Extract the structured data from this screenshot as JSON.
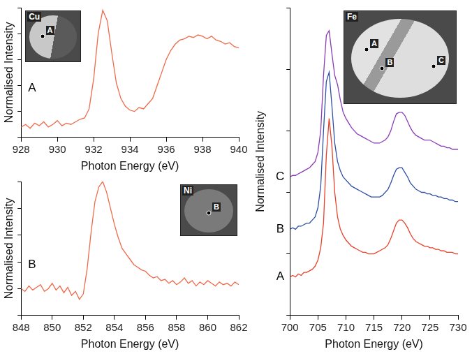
{
  "chart_data": [
    {
      "type": "line",
      "xlabel": "Photon Energy (eV)",
      "ylabel": "Normalised Intensity",
      "x": [
        928,
        928.25,
        928.5,
        928.75,
        929,
        929.25,
        929.5,
        929.75,
        930,
        930.25,
        930.5,
        930.75,
        931,
        931.25,
        931.5,
        931.75,
        932,
        932.25,
        932.5,
        932.75,
        933,
        933.25,
        933.5,
        933.75,
        934,
        934.25,
        934.5,
        934.75,
        935,
        935.25,
        935.5,
        935.75,
        936,
        936.25,
        936.5,
        936.75,
        937,
        937.25,
        937.5,
        937.75,
        938,
        938.25,
        938.5,
        938.75,
        939,
        939.25,
        939.5,
        939.75,
        940
      ],
      "series": [
        {
          "name": "A",
          "color": "#ef6a4a",
          "values": [
            8,
            10,
            7,
            11,
            9,
            12,
            8,
            10,
            13,
            9,
            11,
            10,
            12,
            14,
            15,
            22,
            45,
            80,
            98,
            90,
            65,
            42,
            30,
            24,
            21,
            20,
            23,
            22,
            26,
            30,
            40,
            50,
            60,
            67,
            72,
            75,
            76,
            78,
            77,
            79,
            78,
            76,
            78,
            75,
            74,
            72,
            73,
            70,
            69
          ]
        }
      ],
      "xlim": [
        928,
        940
      ],
      "xticks": [
        928,
        930,
        932,
        934,
        936,
        938,
        940
      ],
      "ylim": [
        0,
        100
      ],
      "yticks": [
        0,
        20,
        40,
        60,
        80,
        100
      ],
      "grid": false,
      "tick_labels": "x",
      "inset": {
        "title": "Cu",
        "points": [
          "A"
        ]
      }
    },
    {
      "type": "line",
      "xlabel": "Photon Energy (eV)",
      "ylabel": "Normalised Intensity",
      "x": [
        848,
        848.25,
        848.5,
        848.75,
        849,
        849.25,
        849.5,
        849.75,
        850,
        850.25,
        850.5,
        850.75,
        851,
        851.25,
        851.5,
        851.75,
        852,
        852.25,
        852.5,
        852.75,
        853,
        853.25,
        853.5,
        853.75,
        854,
        854.25,
        854.5,
        854.75,
        855,
        855.25,
        855.5,
        855.75,
        856,
        856.25,
        856.5,
        856.75,
        857,
        857.25,
        857.5,
        857.75,
        858,
        858.25,
        858.5,
        858.75,
        859,
        859.25,
        859.5,
        859.75,
        860,
        860.25,
        860.5,
        860.75,
        861,
        861.25,
        861.5,
        861.75,
        862
      ],
      "series": [
        {
          "name": "B",
          "color": "#ef6a4a",
          "values": [
            20,
            18,
            22,
            19,
            21,
            23,
            18,
            20,
            24,
            19,
            22,
            17,
            21,
            15,
            18,
            12,
            16,
            35,
            62,
            85,
            96,
            100,
            92,
            80,
            68,
            58,
            50,
            46,
            42,
            38,
            36,
            34,
            33,
            30,
            28,
            29,
            26,
            27,
            24,
            26,
            23,
            25,
            28,
            24,
            26,
            22,
            25,
            23,
            26,
            24,
            22,
            25,
            23,
            24,
            22,
            25,
            23
          ]
        }
      ],
      "xlim": [
        848,
        862
      ],
      "xticks": [
        848,
        850,
        852,
        854,
        856,
        858,
        860,
        862
      ],
      "ylim": [
        0,
        100
      ],
      "yticks": [
        0,
        20,
        40,
        60,
        80,
        100
      ],
      "grid": false,
      "tick_labels": "x",
      "inset": {
        "title": "Ni",
        "points": [
          "B"
        ]
      }
    },
    {
      "type": "line",
      "xlabel": "Photon Energy (eV)",
      "ylabel": "Normalised Intensity",
      "x": [
        700,
        700.5,
        701,
        701.5,
        702,
        702.5,
        703,
        703.5,
        704,
        704.5,
        705,
        705.5,
        706,
        706.5,
        707,
        707.5,
        708,
        708.5,
        709,
        709.5,
        710,
        710.5,
        711,
        711.5,
        712,
        712.5,
        713,
        713.5,
        714,
        714.5,
        715,
        715.5,
        716,
        716.5,
        717,
        717.5,
        718,
        718.5,
        719,
        719.5,
        720,
        720.5,
        721,
        721.5,
        722,
        722.5,
        723,
        723.5,
        724,
        724.5,
        725,
        725.5,
        726,
        726.5,
        727,
        727.5,
        728,
        728.5,
        729,
        729.5,
        730
      ],
      "series": [
        {
          "name": "A",
          "color": "#e8402a",
          "values": [
            12.5,
            13,
            12.5,
            13.5,
            13,
            14,
            14,
            14.5,
            15,
            16,
            18,
            22,
            30,
            52,
            64,
            55,
            40,
            32,
            28,
            26,
            24.5,
            23.5,
            22.5,
            22,
            21.5,
            21,
            20.5,
            20.5,
            20,
            20,
            20,
            20.5,
            21,
            21.5,
            22,
            23,
            25,
            27.5,
            30,
            31,
            31,
            30,
            28.5,
            26.5,
            25,
            24,
            23.5,
            23,
            22.5,
            22.5,
            22,
            22,
            21.5,
            21.5,
            21,
            21,
            20.5,
            20.5,
            20.5,
            20,
            20
          ]
        },
        {
          "name": "B",
          "color": "#2c4fa6",
          "values": [
            28,
            28.5,
            28,
            29,
            29,
            29.5,
            30,
            30,
            31,
            32,
            35,
            42,
            60,
            76,
            79,
            68,
            56,
            50,
            47,
            45,
            44,
            43,
            42,
            41.5,
            41,
            40.5,
            40,
            39.5,
            39,
            38.5,
            38.5,
            38.5,
            38.5,
            39,
            40,
            41,
            43,
            45.5,
            47.5,
            48,
            48,
            46.5,
            45,
            43,
            42,
            41,
            40.5,
            40,
            40,
            39.5,
            39.5,
            39,
            39,
            38.5,
            38.5,
            38,
            38,
            37.5,
            37.5,
            37,
            37
          ]
        },
        {
          "name": "C",
          "color": "#8a3cb4",
          "values": [
            45,
            45.5,
            45.5,
            46,
            46.5,
            47,
            47.5,
            48,
            49,
            50,
            53,
            60,
            78,
            91,
            92.5,
            85,
            78,
            75,
            70,
            66,
            64,
            62.5,
            61,
            60,
            59,
            58.5,
            58,
            57.5,
            57,
            56.5,
            56,
            56,
            56,
            56.5,
            57,
            58,
            60,
            63,
            65.5,
            66,
            66,
            65,
            63,
            61,
            59.5,
            58.5,
            58,
            57.5,
            57,
            57,
            57,
            56.5,
            56,
            55.5,
            55,
            55,
            54.5,
            54.5,
            54,
            54,
            54
          ]
        }
      ],
      "xlim": [
        700,
        730
      ],
      "xticks": [
        700,
        705,
        710,
        715,
        720,
        725,
        730
      ],
      "ylim": [
        0,
        100
      ],
      "yticks": [
        0,
        20,
        40,
        60,
        80,
        100
      ],
      "grid": false,
      "tick_labels": "x",
      "inset": {
        "title": "Fe",
        "points": [
          "A",
          "B",
          "C"
        ]
      }
    }
  ]
}
